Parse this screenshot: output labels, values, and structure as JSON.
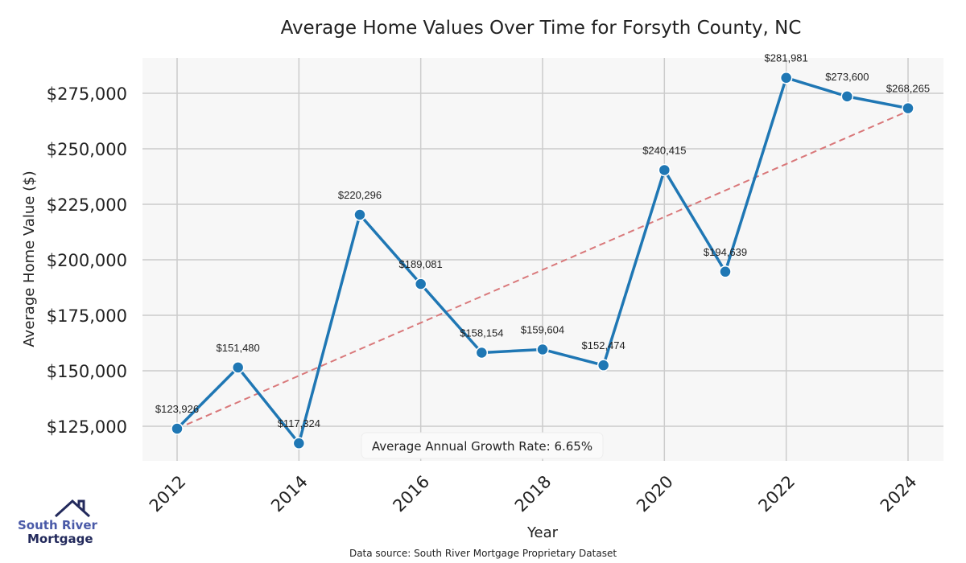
{
  "chart_data": {
    "type": "line",
    "title": "Average Home Values Over Time for Forsyth County, NC",
    "xlabel": "Year",
    "ylabel": "Average Home Value ($)",
    "x": [
      2012,
      2013,
      2014,
      2015,
      2016,
      2017,
      2018,
      2019,
      2020,
      2021,
      2022,
      2023,
      2024
    ],
    "series": [
      {
        "name": "Average Home Value",
        "values": [
          123926,
          151480,
          117324,
          220296,
          189081,
          158154,
          159604,
          152474,
          240415,
          194639,
          281981,
          273600,
          268265
        ],
        "color": "#1f77b4"
      }
    ],
    "data_labels": [
      "$123,926",
      "$151,480",
      "$117,324",
      "$220,296",
      "$189,081",
      "$158,154",
      "$159,604",
      "$152,474",
      "$240,415",
      "$194,639",
      "$281,981",
      "$273,600",
      "$268,265"
    ],
    "trend": {
      "x": [
        2012,
        2024
      ],
      "y": [
        123926,
        267000
      ],
      "color": "#d9787a"
    },
    "xticks": [
      2012,
      2014,
      2016,
      2018,
      2020,
      2022,
      2024
    ],
    "xtick_labels": [
      "2012",
      "2014",
      "2016",
      "2018",
      "2020",
      "2022",
      "2024"
    ],
    "yticks": [
      125000,
      150000,
      175000,
      200000,
      225000,
      250000,
      275000
    ],
    "ytick_labels": [
      "$125,000",
      "$150,000",
      "$175,000",
      "$200,000",
      "$225,000",
      "$250,000",
      "$275,000"
    ],
    "xlim": [
      2011.4,
      2024.6
    ],
    "ylim": [
      109000,
      291000
    ],
    "grid": true,
    "annotation": "Average Annual Growth Rate: 6.65%"
  },
  "logo": {
    "line1": "South River",
    "line2": "Mortgage"
  },
  "source": "Data source: South River Mortgage Proprietary Dataset"
}
